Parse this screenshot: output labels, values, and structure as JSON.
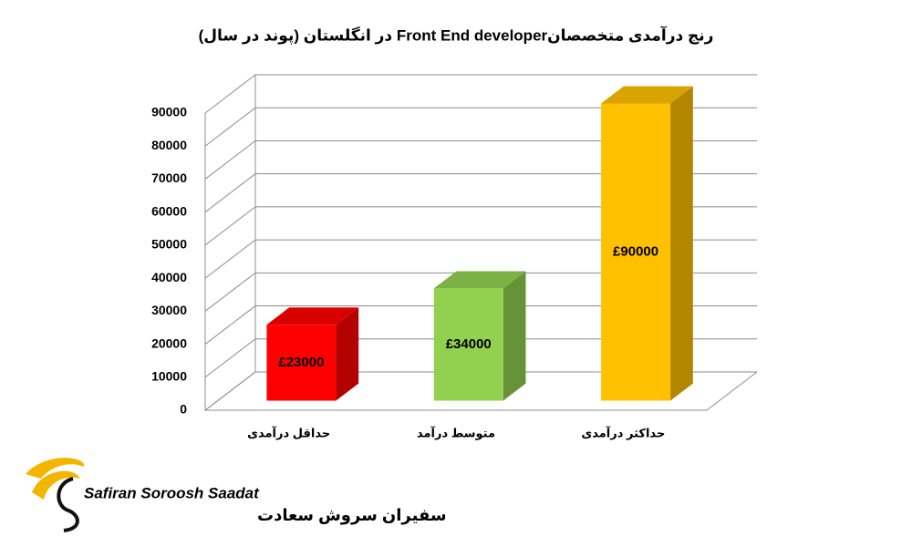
{
  "chart_data": {
    "type": "bar3d",
    "title": "رنج درآمدی متخصصانFront End developer  در انگلستان (پوند در سال)",
    "categories": [
      "حداقل درآمدی",
      "متوسط درآمد",
      "حداکثر درآمدی"
    ],
    "values": [
      23000,
      34000,
      90000
    ],
    "value_labels": [
      "£23000",
      "£34000",
      "£90000"
    ],
    "colors": [
      "#ff0000",
      "#92d050",
      "#ffc000"
    ],
    "ylim": [
      0,
      90000
    ],
    "yticks": [
      0,
      10000,
      20000,
      30000,
      40000,
      50000,
      60000,
      70000,
      80000,
      90000
    ],
    "grid": true
  },
  "logo": {
    "name": "Safiran Soroosh Saadat",
    "name_fa": "سفیران سروش سعادت"
  }
}
